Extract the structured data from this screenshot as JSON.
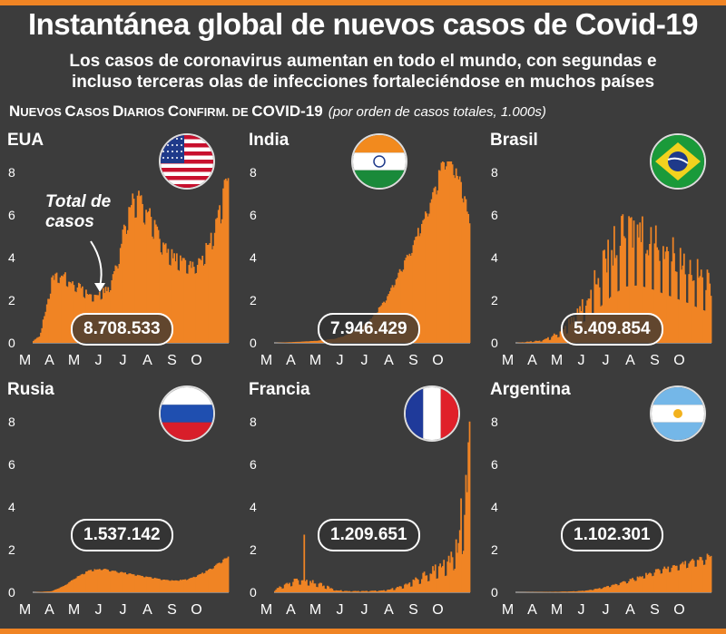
{
  "title": "Instantánea global de nuevos casos de Covid-19",
  "subtitle_line1": "Los casos de coronavirus aumentan en todo el mundo, con segundas e",
  "subtitle_line2": "incluso terceras olas de infecciones fortaleciéndose en muchos países",
  "header": {
    "n": "N",
    "uevos": "UEVOS ",
    "c1": "C",
    "asos": "ASOS ",
    "d": "D",
    "iarios": "IARIOS ",
    "c2": "C",
    "onfirm": "ONFIRM. DE ",
    "covid": "COVID-19",
    "note": "(por orden de casos totales, 1.000s)"
  },
  "annotation_line1": "Total de",
  "annotation_line2": "casos",
  "colors": {
    "bars": "#f08424",
    "background": "#3c3c3c",
    "accent": "#f08424"
  },
  "chart_data": [
    {
      "type": "bar",
      "country": "EUA",
      "total": "8.708.533",
      "flag": "usa-flag-icon",
      "x_labels": [
        "M",
        "A",
        "M",
        "J",
        "J",
        "A",
        "S",
        "O"
      ],
      "y_ticks": [
        0,
        2,
        4,
        6,
        8
      ],
      "ylim": [
        0,
        8.5
      ],
      "series_keypoints": [
        [
          0,
          0.1
        ],
        [
          5,
          0.3
        ],
        [
          10,
          1.5
        ],
        [
          15,
          2.9
        ],
        [
          20,
          3.2
        ],
        [
          25,
          3.1
        ],
        [
          30,
          2.9
        ],
        [
          35,
          2.7
        ],
        [
          40,
          2.5
        ],
        [
          45,
          2.2
        ],
        [
          50,
          2.2
        ],
        [
          55,
          2.3
        ],
        [
          60,
          2.5
        ],
        [
          65,
          3.0
        ],
        [
          70,
          4.2
        ],
        [
          75,
          5.6
        ],
        [
          80,
          6.6
        ],
        [
          85,
          6.7
        ],
        [
          90,
          6.4
        ],
        [
          95,
          5.9
        ],
        [
          100,
          5.3
        ],
        [
          105,
          4.7
        ],
        [
          110,
          4.2
        ],
        [
          115,
          4.0
        ],
        [
          120,
          3.8
        ],
        [
          125,
          3.7
        ],
        [
          130,
          3.6
        ],
        [
          135,
          3.8
        ],
        [
          140,
          4.2
        ],
        [
          145,
          4.8
        ],
        [
          150,
          5.7
        ],
        [
          155,
          6.8
        ],
        [
          160,
          8.2
        ]
      ],
      "variability": 0.12
    },
    {
      "type": "bar",
      "country": "India",
      "total": "7.946.429",
      "flag": "india-flag-icon",
      "x_labels": [
        "M",
        "A",
        "M",
        "J",
        "J",
        "A",
        "S",
        "O"
      ],
      "y_ticks": [
        0,
        2,
        4,
        6,
        8
      ],
      "ylim": [
        0,
        8.5
      ],
      "series_keypoints": [
        [
          0,
          0
        ],
        [
          20,
          0.05
        ],
        [
          35,
          0.1
        ],
        [
          50,
          0.2
        ],
        [
          60,
          0.4
        ],
        [
          70,
          0.7
        ],
        [
          80,
          1.2
        ],
        [
          90,
          2.0
        ],
        [
          100,
          3.1
        ],
        [
          110,
          4.2
        ],
        [
          120,
          5.6
        ],
        [
          130,
          7.0
        ],
        [
          135,
          8.0
        ],
        [
          140,
          8.8
        ],
        [
          145,
          8.5
        ],
        [
          150,
          7.8
        ],
        [
          155,
          6.8
        ],
        [
          160,
          5.2
        ]
      ],
      "variability": 0.06
    },
    {
      "type": "bar",
      "country": "Brasil",
      "total": "5.409.854",
      "flag": "brazil-flag-icon",
      "x_labels": [
        "M",
        "A",
        "M",
        "J",
        "J",
        "A",
        "S",
        "O"
      ],
      "y_ticks": [
        0,
        2,
        4,
        6,
        8
      ],
      "ylim": [
        0,
        8.5
      ],
      "series_keypoints": [
        [
          0,
          0
        ],
        [
          20,
          0.1
        ],
        [
          30,
          0.3
        ],
        [
          40,
          0.7
        ],
        [
          50,
          1.3
        ],
        [
          60,
          2.2
        ],
        [
          70,
          3.2
        ],
        [
          80,
          4.2
        ],
        [
          90,
          4.8
        ],
        [
          100,
          4.9
        ],
        [
          110,
          4.6
        ],
        [
          120,
          4.2
        ],
        [
          130,
          3.8
        ],
        [
          140,
          3.4
        ],
        [
          150,
          2.9
        ],
        [
          160,
          2.5
        ]
      ],
      "variability": 0.45
    },
    {
      "type": "bar",
      "country": "Rusia",
      "total": "1.537.142",
      "flag": "russia-flag-icon",
      "x_labels": [
        "M",
        "A",
        "M",
        "J",
        "J",
        "A",
        "S",
        "O"
      ],
      "y_ticks": [
        0,
        2,
        4,
        6,
        8
      ],
      "ylim": [
        0,
        8.5
      ],
      "series_keypoints": [
        [
          0,
          0
        ],
        [
          15,
          0.05
        ],
        [
          25,
          0.3
        ],
        [
          35,
          0.7
        ],
        [
          45,
          1.0
        ],
        [
          55,
          1.1
        ],
        [
          65,
          1.0
        ],
        [
          75,
          0.9
        ],
        [
          85,
          0.8
        ],
        [
          95,
          0.7
        ],
        [
          105,
          0.6
        ],
        [
          115,
          0.55
        ],
        [
          125,
          0.6
        ],
        [
          135,
          0.8
        ],
        [
          145,
          1.1
        ],
        [
          155,
          1.5
        ],
        [
          160,
          1.7
        ]
      ],
      "variability": 0.05
    },
    {
      "type": "bar",
      "country": "Francia",
      "total": "1.209.651",
      "flag": "france-flag-icon",
      "x_labels": [
        "M",
        "A",
        "M",
        "J",
        "J",
        "A",
        "S",
        "O"
      ],
      "y_ticks": [
        0,
        2,
        4,
        6,
        8
      ],
      "ylim": [
        0,
        8.5
      ],
      "series_keypoints": [
        [
          0,
          0.1
        ],
        [
          10,
          0.4
        ],
        [
          20,
          0.6
        ],
        [
          30,
          0.5
        ],
        [
          40,
          0.3
        ],
        [
          50,
          0.1
        ],
        [
          60,
          0.05
        ],
        [
          70,
          0.05
        ],
        [
          80,
          0.06
        ],
        [
          90,
          0.1
        ],
        [
          100,
          0.2
        ],
        [
          110,
          0.4
        ],
        [
          120,
          0.7
        ],
        [
          130,
          1.0
        ],
        [
          140,
          1.3
        ],
        [
          145,
          1.6
        ],
        [
          150,
          2.2
        ],
        [
          155,
          3.5
        ],
        [
          160,
          7.8
        ]
      ],
      "spikes": [
        [
          24,
          2.7
        ],
        [
          152,
          4.4
        ],
        [
          156,
          5.5
        ],
        [
          159,
          8.0
        ]
      ],
      "variability": 0.4
    },
    {
      "type": "bar",
      "country": "Argentina",
      "total": "1.102.301",
      "flag": "argentina-flag-icon",
      "x_labels": [
        "M",
        "A",
        "M",
        "J",
        "J",
        "A",
        "S",
        "O"
      ],
      "y_ticks": [
        0,
        2,
        4,
        6,
        8
      ],
      "ylim": [
        0,
        8.5
      ],
      "series_keypoints": [
        [
          0,
          0
        ],
        [
          30,
          0.02
        ],
        [
          50,
          0.05
        ],
        [
          60,
          0.1
        ],
        [
          70,
          0.2
        ],
        [
          80,
          0.35
        ],
        [
          90,
          0.5
        ],
        [
          100,
          0.7
        ],
        [
          110,
          0.9
        ],
        [
          120,
          1.1
        ],
        [
          130,
          1.2
        ],
        [
          140,
          1.4
        ],
        [
          150,
          1.5
        ],
        [
          160,
          1.7
        ]
      ],
      "variability": 0.18
    }
  ]
}
